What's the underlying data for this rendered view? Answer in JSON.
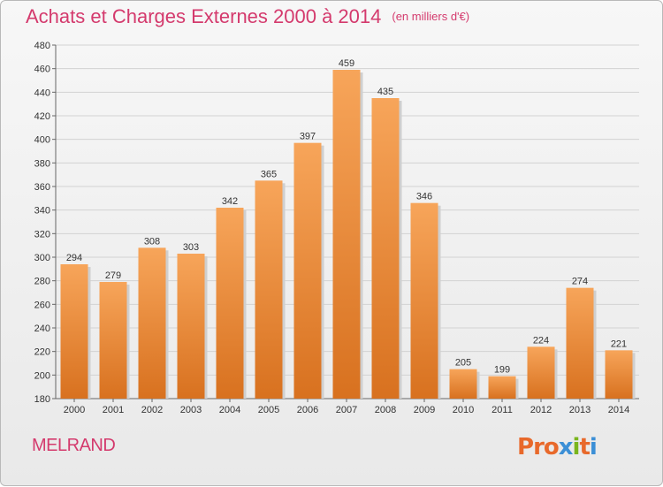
{
  "page": {
    "title": "Achats et Charges Externes 2000 à 2014",
    "subtitle": "(en milliers d'€)",
    "commune": "MELRAND",
    "logo": "Proxiti"
  },
  "colors": {
    "title": "#d43a6d",
    "bar_top": "#f7a55a",
    "bar_bottom": "#d8711f",
    "grid": "#d2d2d2",
    "logo": [
      "#e8692b",
      "#e8692b",
      "#e8692b",
      "#3b8fd6",
      "#7ab51d",
      "#e8692b",
      "#3b8fd6"
    ]
  },
  "chart_data": {
    "type": "bar",
    "categories": [
      "2000",
      "2001",
      "2002",
      "2003",
      "2004",
      "2005",
      "2006",
      "2007",
      "2008",
      "2009",
      "2010",
      "2011",
      "2012",
      "2013",
      "2014"
    ],
    "values": [
      294,
      279,
      308,
      303,
      342,
      365,
      397,
      459,
      435,
      346,
      205,
      199,
      224,
      274,
      221
    ],
    "title": "Achats et Charges Externes 2000 à 2014",
    "ylim": [
      180,
      480
    ],
    "yticks": [
      180,
      200,
      220,
      240,
      260,
      280,
      300,
      320,
      340,
      360,
      380,
      400,
      420,
      440,
      460,
      480
    ],
    "grid": true
  }
}
